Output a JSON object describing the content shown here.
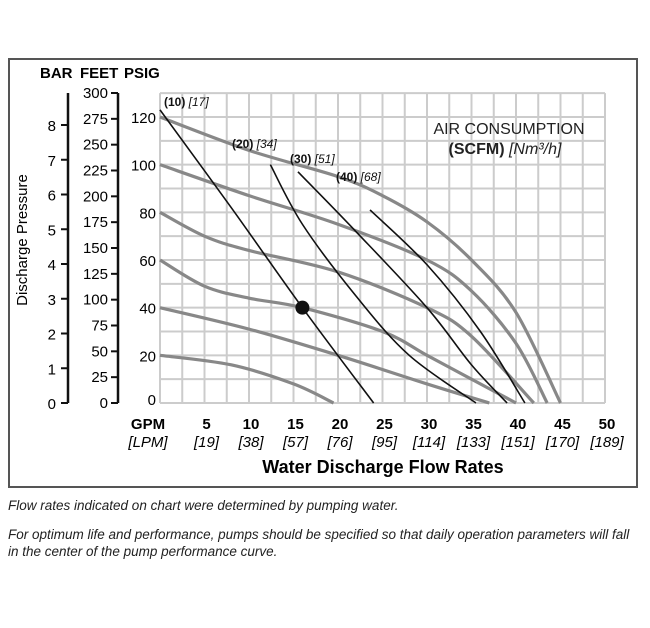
{
  "chart_data": {
    "type": "line",
    "title": "",
    "xlabel": "Water Discharge Flow Rates",
    "ylabel": "Discharge Pressure",
    "xlim": [
      0,
      50
    ],
    "ylim": [
      0,
      130
    ],
    "grid": true,
    "x_ticks": [
      {
        "gpm": "GPM",
        "lpm": "[LPM]"
      },
      {
        "gpm": "5",
        "lpm": "[19]"
      },
      {
        "gpm": "10",
        "lpm": "[38]"
      },
      {
        "gpm": "15",
        "lpm": "[57]"
      },
      {
        "gpm": "20",
        "lpm": "[76]"
      },
      {
        "gpm": "25",
        "lpm": "[95]"
      },
      {
        "gpm": "30",
        "lpm": "[114]"
      },
      {
        "gpm": "35",
        "lpm": "[133]"
      },
      {
        "gpm": "40",
        "lpm": "[151]"
      },
      {
        "gpm": "45",
        "lpm": "[170]"
      },
      {
        "gpm": "50",
        "lpm": "[189]"
      }
    ],
    "axis_headers": {
      "bar": "BAR",
      "feet": "FEET",
      "psig": "PSIG"
    },
    "psig_ticks": [
      "0",
      "20",
      "40",
      "60",
      "80",
      "100",
      "120"
    ],
    "feet_ticks": [
      "0",
      "25",
      "50",
      "75",
      "100",
      "125",
      "150",
      "175",
      "200",
      "225",
      "250",
      "275",
      "300"
    ],
    "bar_ticks": [
      "0",
      "1",
      "2",
      "3",
      "4",
      "5",
      "6",
      "7",
      "8"
    ],
    "legend": {
      "line1": "AIR CONSUMPTION",
      "line2_bold": "(SCFM)",
      "line2_italic": "[Nm³/h]"
    },
    "pressure_curves": [
      {
        "points": [
          [
            0,
            120
          ],
          [
            10,
            106
          ],
          [
            20,
            95
          ],
          [
            25,
            87
          ],
          [
            30,
            76
          ],
          [
            35,
            60
          ],
          [
            40,
            38
          ],
          [
            45,
            0
          ]
        ]
      },
      {
        "points": [
          [
            0,
            100
          ],
          [
            10,
            87
          ],
          [
            20,
            75
          ],
          [
            30,
            60
          ],
          [
            35,
            47
          ],
          [
            40,
            25
          ],
          [
            43.5,
            0
          ]
        ]
      },
      {
        "points": [
          [
            0,
            80
          ],
          [
            5,
            70
          ],
          [
            10,
            64
          ],
          [
            20,
            55
          ],
          [
            30,
            40
          ],
          [
            35,
            28
          ],
          [
            42,
            0
          ]
        ]
      },
      {
        "points": [
          [
            0,
            60
          ],
          [
            5,
            49
          ],
          [
            10,
            44
          ],
          [
            16,
            40
          ],
          [
            25,
            30
          ],
          [
            30,
            20
          ],
          [
            35,
            10
          ],
          [
            40,
            0
          ]
        ]
      },
      {
        "points": [
          [
            0,
            40
          ],
          [
            10,
            31
          ],
          [
            20,
            20
          ],
          [
            30,
            8
          ],
          [
            37,
            0
          ]
        ]
      },
      {
        "points": [
          [
            0,
            20
          ],
          [
            8,
            16
          ],
          [
            15,
            8
          ],
          [
            19.5,
            0
          ]
        ]
      }
    ],
    "air_curves": [
      {
        "scfm": "(10)",
        "nm3h": "[17]",
        "points": [
          [
            0,
            123
          ],
          [
            8,
            82
          ],
          [
            16,
            40
          ],
          [
            24,
            0
          ]
        ]
      },
      {
        "scfm": "(20)",
        "nm3h": "[34]",
        "points": [
          [
            12.4,
            100
          ],
          [
            16,
            75
          ],
          [
            22,
            45
          ],
          [
            28,
            20
          ],
          [
            35.5,
            0
          ]
        ]
      },
      {
        "scfm": "(30)",
        "nm3h": "[51]",
        "points": [
          [
            15.5,
            97
          ],
          [
            22,
            72
          ],
          [
            30,
            40
          ],
          [
            35,
            16
          ],
          [
            39,
            0
          ]
        ]
      },
      {
        "scfm": "(40)",
        "nm3h": "[68]",
        "points": [
          [
            23.6,
            81
          ],
          [
            30,
            58
          ],
          [
            36,
            30
          ],
          [
            41,
            0
          ]
        ]
      }
    ],
    "marker": {
      "x": 16,
      "y": 40
    }
  },
  "notes": [
    "Flow rates indicated on chart were determined by pumping water.",
    "For optimum life and performance, pumps should be specified so that daily operation parameters will fall in the center of the pump performance curve."
  ],
  "colors": {
    "pressure": "#888888",
    "air": "#111111",
    "grid": "#cccccc"
  }
}
